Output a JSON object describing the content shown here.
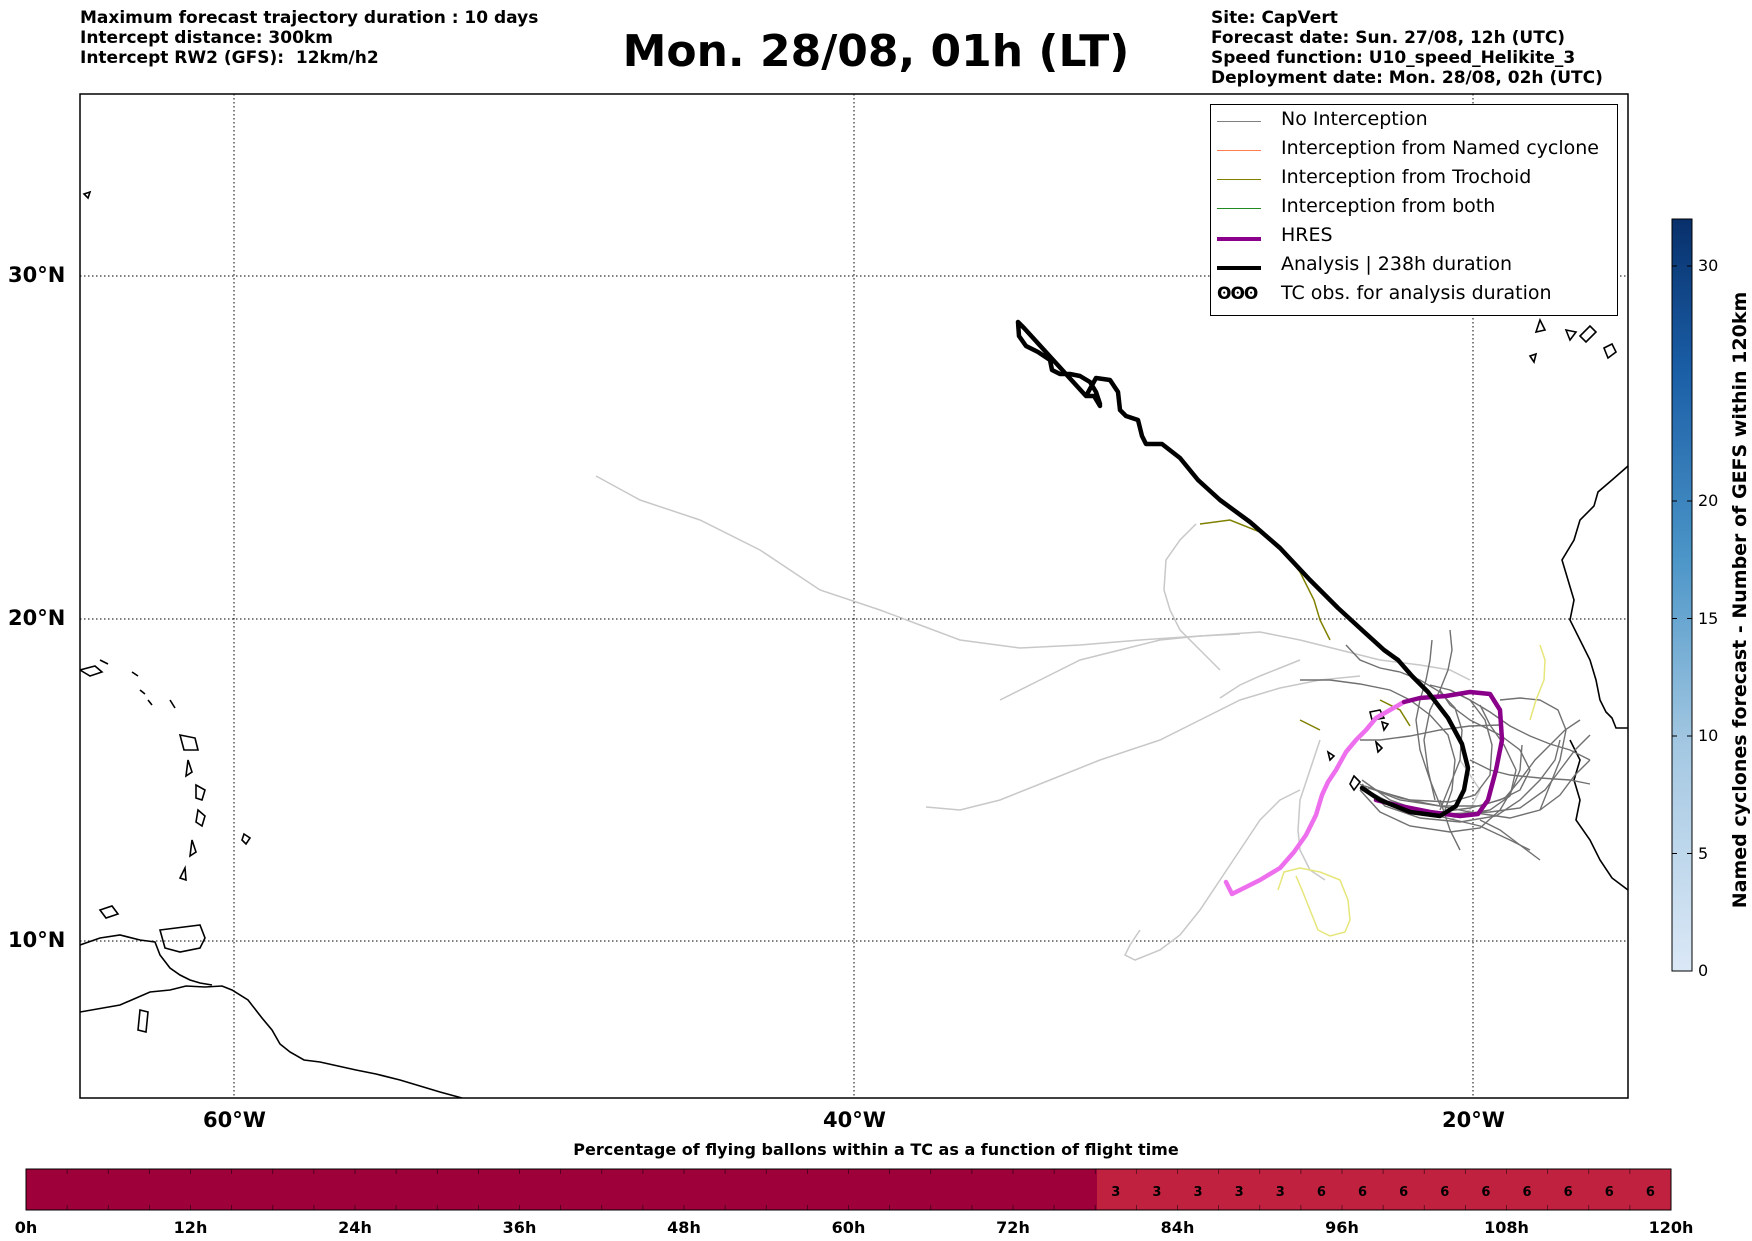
{
  "header_left": {
    "line1": "Maximum forecast trajectory duration : 10 days",
    "line2": "Intercept distance: 300km",
    "line3": "Intercept RW2 (GFS):  12km/h2"
  },
  "title": "Mon. 28/08, 01h (LT)",
  "header_right": {
    "line1": "Site: CapVert",
    "line2": "Forecast date: Sun. 27/08, 12h (UTC)",
    "line3": "Speed function: U10_speed_Helikite_3",
    "line4": "Deployment date: Mon. 28/08, 02h (UTC)"
  },
  "map": {
    "lat_labels": [
      "30°N",
      "20°N",
      "10°N"
    ],
    "lon_labels": [
      "60°W",
      "40°W",
      "20°W"
    ],
    "lon_range": [
      -65,
      -15
    ],
    "lat_range": [
      5,
      35
    ]
  },
  "legend": [
    {
      "label": "No Interception",
      "color": "#808080",
      "width": 1.5
    },
    {
      "label": "Interception from Named cyclone",
      "color": "#ff7f50",
      "width": 1.5
    },
    {
      "label": "Interception from Trochoid",
      "color": "#808000",
      "width": 1.5
    },
    {
      "label": "Interception from both",
      "color": "#228b22",
      "width": 1.5
    },
    {
      "label": "HRES",
      "color": "#8b008b",
      "width": 4
    },
    {
      "label": "Analysis | 238h duration",
      "color": "#000000",
      "width": 4
    },
    {
      "label": "TC obs. for analysis duration",
      "color": "#000000",
      "width": 0,
      "symbol": "ʘʘʘ"
    }
  ],
  "colorbar": {
    "label": "Named cyclones forecast - Number of GEFS within 120km",
    "ticks": [
      "30",
      "20",
      "15",
      "10",
      "5",
      "0"
    ],
    "tick_values": [
      30,
      20,
      15,
      10,
      5,
      0
    ],
    "max": 32
  },
  "bottom_bar": {
    "title": "Percentage of flying ballons within a TC as a function of flight time",
    "time_ticks": [
      "0h",
      "12h",
      "24h",
      "36h",
      "48h",
      "60h",
      "72h",
      "84h",
      "96h",
      "108h",
      "120h"
    ],
    "values": [
      "3",
      "3",
      "3",
      "3",
      "3",
      "6",
      "6",
      "6",
      "6",
      "6",
      "6",
      "6",
      "6",
      "6"
    ],
    "dark_color": "#9e0039",
    "light_color": "#c0213f"
  },
  "colors": {
    "analysis": "#000000",
    "hres": "#8b008b",
    "hres_light": "#ee6fee",
    "ensemble": "#707070",
    "ensemble_light": "#c8c8c8",
    "trochoid": "#808000",
    "yellow": "#e6e67a"
  }
}
